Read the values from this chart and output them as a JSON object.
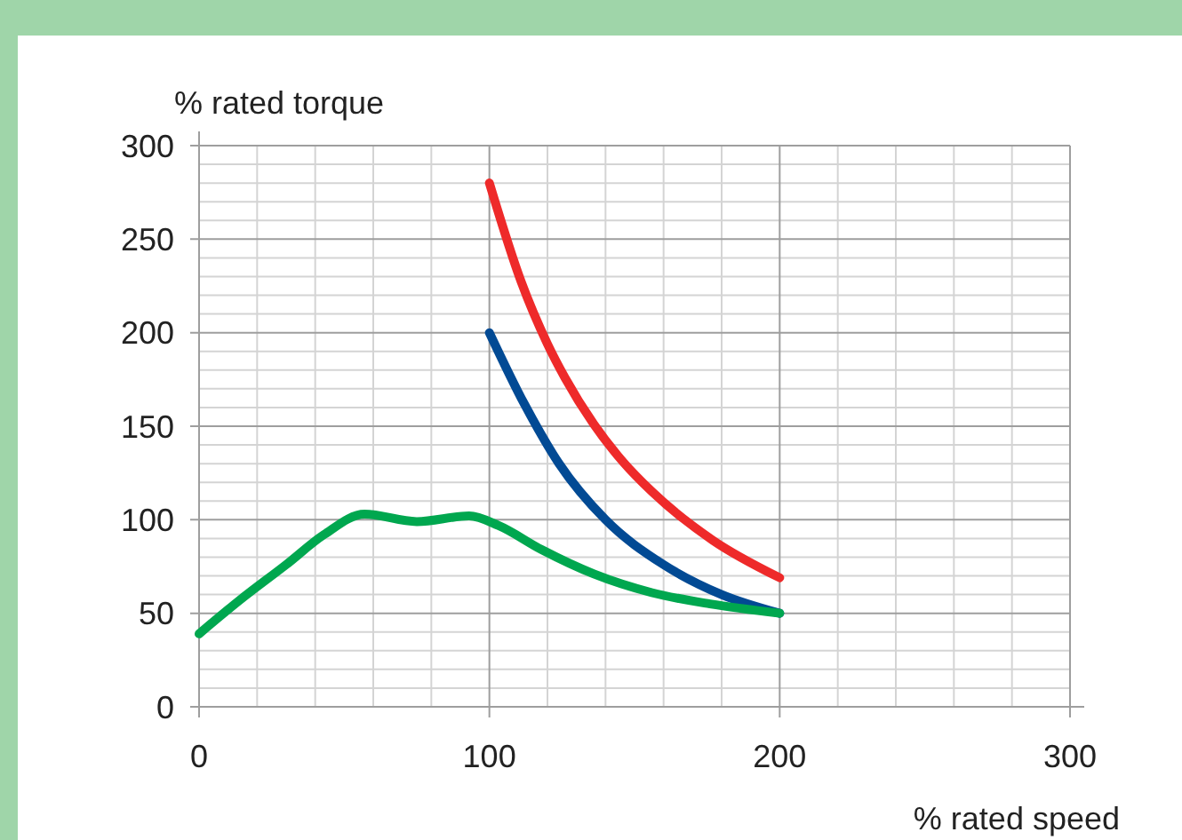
{
  "chart_data": {
    "type": "line",
    "xlabel": "% rated speed",
    "ylabel": "% rated torque",
    "xlim": [
      0,
      300
    ],
    "ylim": [
      0,
      300
    ],
    "xticks": [
      0,
      100,
      200,
      300
    ],
    "yticks": [
      0,
      50,
      100,
      150,
      200,
      250,
      300
    ],
    "grid": true,
    "line_style": "solid",
    "marker": "none",
    "series": [
      {
        "color": "#ee2a2a",
        "x": [
          100,
          111,
          120,
          126,
          136,
          146,
          156,
          177,
          200
        ],
        "values": [
          280,
          227,
          194,
          176,
          151,
          131,
          115,
          89,
          69
        ]
      },
      {
        "color": "#024a94",
        "x": [
          100,
          112,
          124,
          140,
          160,
          180,
          200
        ],
        "values": [
          200,
          162,
          130,
          100,
          76,
          60,
          50
        ]
      },
      {
        "color": "#00a74f",
        "x": [
          0,
          14,
          30,
          43,
          57,
          75,
          93,
          103,
          118,
          136,
          156,
          176,
          200
        ],
        "values": [
          39,
          57,
          76,
          92,
          103,
          99,
          102,
          97,
          84,
          71,
          61,
          55,
          50
        ]
      }
    ]
  }
}
